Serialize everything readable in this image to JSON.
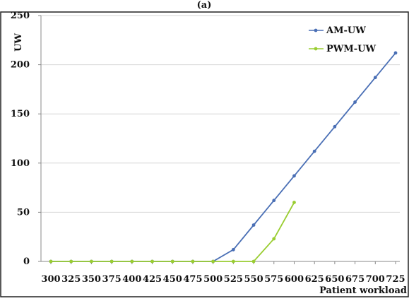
{
  "chart_data": {
    "type": "line",
    "top_caption": "(a)",
    "title": "",
    "xlabel": "Patient workload",
    "ylabel": "UW",
    "x": [
      300,
      325,
      350,
      375,
      400,
      425,
      450,
      475,
      500,
      525,
      550,
      575,
      600,
      625,
      650,
      675,
      700,
      725
    ],
    "xticks": [
      "300",
      "325",
      "350",
      "375",
      "400",
      "425",
      "450",
      "475",
      "500",
      "525",
      "550",
      "575",
      "600",
      "625",
      "650",
      "675",
      "700",
      "725"
    ],
    "ylim": [
      0,
      250
    ],
    "yticks": [
      "0",
      "50",
      "100",
      "150",
      "200",
      "250"
    ],
    "grid": "horizontal",
    "legend_position": "top-right",
    "series": [
      {
        "name": "AM-UW",
        "color": "#4a6fb5",
        "values": [
          0,
          0,
          0,
          0,
          0,
          0,
          0,
          0,
          0,
          12,
          37,
          62,
          87,
          112,
          137,
          162,
          187,
          212
        ]
      },
      {
        "name": "PWM-UW",
        "color": "#9acd32",
        "values": [
          0,
          0,
          0,
          0,
          0,
          0,
          0,
          0,
          0,
          0,
          0,
          23,
          60,
          null,
          null,
          null,
          null,
          null
        ]
      }
    ]
  }
}
